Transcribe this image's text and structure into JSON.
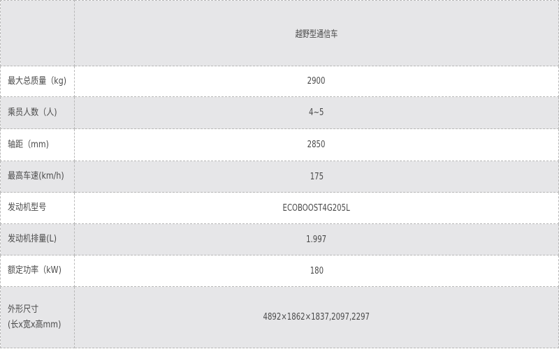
{
  "header": {
    "corner": "",
    "title": "越野型通信车"
  },
  "rows": [
    {
      "label": "最大总质量（kg)",
      "value": "2900"
    },
    {
      "label": "乘员人数（人)",
      "value": "4~5"
    },
    {
      "label": "轴距（mm)",
      "value": "2850"
    },
    {
      "label": "最高车速(km/h)",
      "value": "175"
    },
    {
      "label": "发动机型号",
      "value": "ECOBOOST4G205L"
    },
    {
      "label": "发动机排量(L)",
      "value": "1.997"
    },
    {
      "label": "额定功率（kW)",
      "value": "180"
    },
    {
      "label": "外形尺寸",
      "label2": "(长x宽x高mm)",
      "value": "4892×1862×1837,2097,2297"
    }
  ]
}
